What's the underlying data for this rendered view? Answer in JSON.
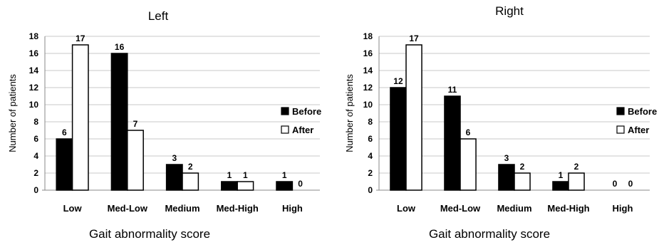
{
  "chart_data": [
    {
      "type": "bar",
      "title": "Left",
      "xlabel": "Gait abnormality score",
      "ylabel": "Number of patients",
      "categories": [
        "Low",
        "Med-Low",
        "Medium",
        "Med-High",
        "High"
      ],
      "series": [
        {
          "name": "Before",
          "values": [
            6,
            16,
            3,
            1,
            1
          ],
          "color": "#000000"
        },
        {
          "name": "After",
          "values": [
            17,
            7,
            2,
            1,
            0
          ],
          "color": "#ffffff"
        }
      ],
      "ylim": [
        0,
        18
      ],
      "yticks": [
        0,
        2,
        4,
        6,
        8,
        10,
        12,
        14,
        16,
        18
      ],
      "grid": true,
      "legend": "right"
    },
    {
      "type": "bar",
      "title": "Right",
      "xlabel": "Gait abnormality score",
      "ylabel": "Number of patients",
      "categories": [
        "Low",
        "Med-Low",
        "Medium",
        "Med-High",
        "High"
      ],
      "series": [
        {
          "name": "Before",
          "values": [
            12,
            11,
            3,
            1,
            0
          ],
          "color": "#000000"
        },
        {
          "name": "After",
          "values": [
            17,
            6,
            2,
            2,
            0
          ],
          "color": "#ffffff"
        }
      ],
      "ylim": [
        0,
        18
      ],
      "yticks": [
        0,
        2,
        4,
        6,
        8,
        10,
        12,
        14,
        16,
        18
      ],
      "grid": true,
      "legend": "right"
    }
  ]
}
